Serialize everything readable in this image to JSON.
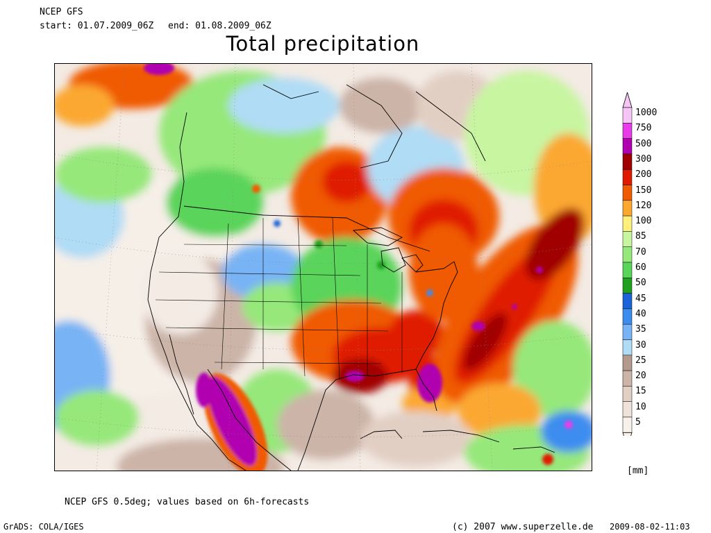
{
  "header": {
    "model": "NCEP GFS",
    "start": "start: 01.07.2009_06Z",
    "end": "end: 01.08.2009_06Z",
    "title": "Total precipitation"
  },
  "legend": {
    "unit": "[mm]",
    "levels": [
      {
        "label": "1000",
        "color": "#f5c6f5"
      },
      {
        "label": "750",
        "color": "#e83ce8"
      },
      {
        "label": "500",
        "color": "#b000b0"
      },
      {
        "label": "300",
        "color": "#a00000"
      },
      {
        "label": "200",
        "color": "#e01a00"
      },
      {
        "label": "150",
        "color": "#f05a00"
      },
      {
        "label": "120",
        "color": "#fba830"
      },
      {
        "label": "100",
        "color": "#fff07c"
      },
      {
        "label": "85",
        "color": "#c8f5a0"
      },
      {
        "label": "70",
        "color": "#96e87a"
      },
      {
        "label": "60",
        "color": "#5ad45a"
      },
      {
        "label": "50",
        "color": "#1fa01f"
      },
      {
        "label": "45",
        "color": "#1a64d8"
      },
      {
        "label": "40",
        "color": "#3c8cf0"
      },
      {
        "label": "35",
        "color": "#78b4f5"
      },
      {
        "label": "30",
        "color": "#b0dcf5"
      },
      {
        "label": "25",
        "color": "#b49a8c"
      },
      {
        "label": "20",
        "color": "#ccb4a8"
      },
      {
        "label": "15",
        "color": "#e2cfc4"
      },
      {
        "label": "10",
        "color": "#efe2d8"
      },
      {
        "label": "5",
        "color": "#f8f1ea"
      }
    ]
  },
  "footer": {
    "note": "NCEP GFS 0.5deg; values based on 6h-forecasts",
    "software": "GrADS: COLA/IGES",
    "copyright": "(c) 2007 www.superzelle.de",
    "timestamp": "2009-08-02-11:03"
  }
}
